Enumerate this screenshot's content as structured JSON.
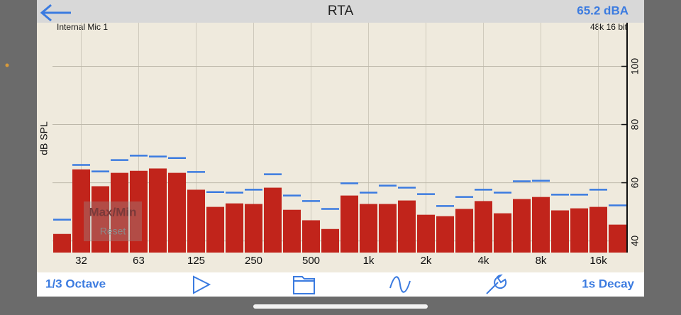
{
  "header": {
    "title": "RTA",
    "level": "65.2 dBA"
  },
  "chart_data": {
    "type": "bar",
    "input_label": "Internal Mic 1",
    "format_label": "48k 16 bit",
    "y_label": "dB SPL",
    "categories": [
      null,
      "32",
      null,
      null,
      "63",
      null,
      null,
      "125",
      null,
      null,
      "250",
      null,
      null,
      "500",
      null,
      null,
      "1k",
      null,
      null,
      "2k",
      null,
      null,
      "4k",
      null,
      null,
      "8k",
      null,
      null,
      "16k",
      null
    ],
    "values": [
      42.4,
      64.6,
      58.8,
      63.4,
      64.1,
      64.9,
      63.4,
      57.6,
      51.7,
      52.9,
      52.7,
      58.3,
      50.7,
      47.1,
      44.1,
      55.6,
      52.7,
      52.7,
      53.9,
      49.0,
      48.5,
      51.0,
      53.7,
      49.5,
      54.4,
      55.1,
      50.5,
      51.2,
      51.7,
      45.6
    ],
    "color": "#c1241b",
    "max_values": [
      47.3,
      66.1,
      63.9,
      67.8,
      69.3,
      69.0,
      68.5,
      63.7,
      56.8,
      56.6,
      57.6,
      62.9,
      55.6,
      53.7,
      51.0,
      59.8,
      56.6,
      59.0,
      58.3,
      56.1,
      52.0,
      55.1,
      57.6,
      56.6,
      60.5,
      60.7,
      55.9,
      55.9,
      57.6,
      52.2
    ],
    "max_color": "#3b7be0",
    "ylim": [
      36,
      115
    ],
    "yticks": [
      40,
      60,
      80,
      100
    ],
    "grid": true
  },
  "overlay_button": {
    "label": "Max/Min",
    "sublabel": "Reset"
  },
  "toolbar": {
    "left": "1/3 Octave",
    "right": "1s Decay"
  }
}
